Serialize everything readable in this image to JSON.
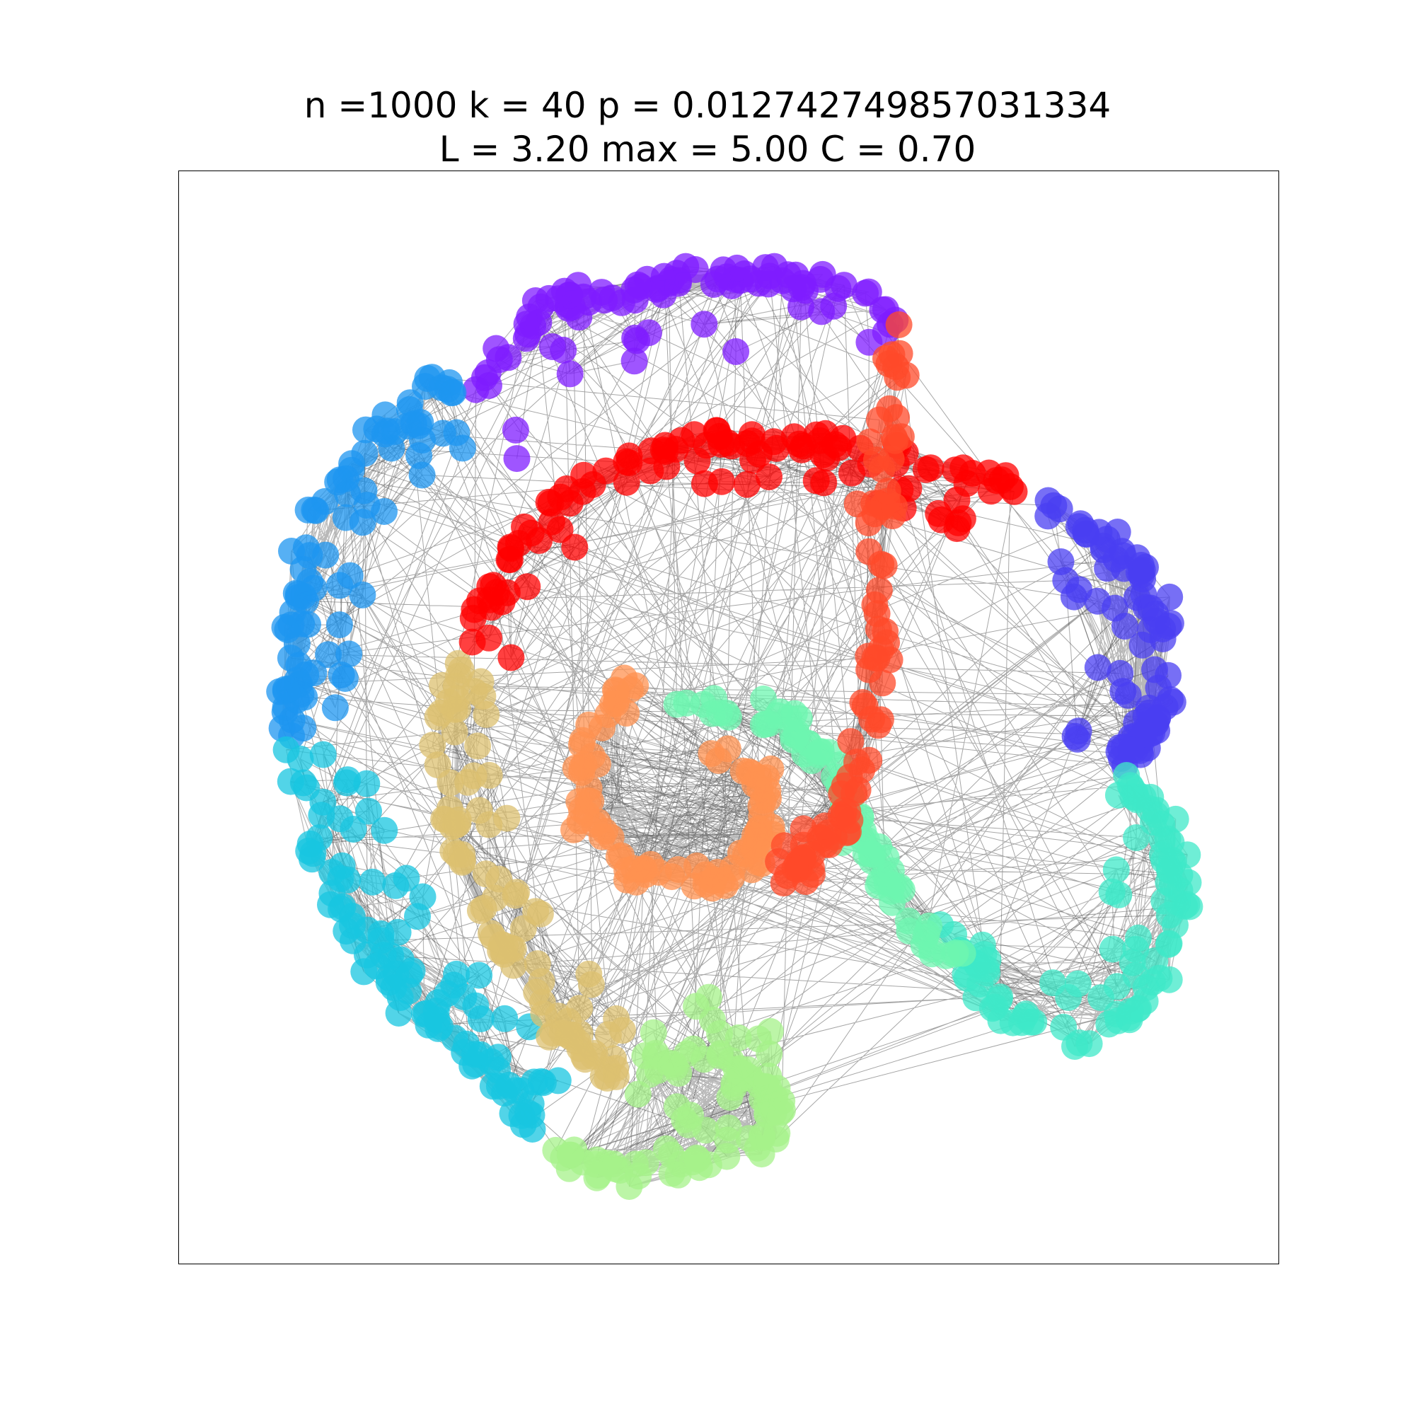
{
  "title": {
    "line1": "n =1000 k = 40 p = 0.012742749857031334",
    "line2": "L = 3.20 max = 5.00 C = 0.70"
  },
  "graph": {
    "type": "network",
    "layout": "force-directed spiral of communities",
    "node_alpha": 0.75,
    "edge_color": "#000000",
    "communities": [
      {
        "name": "purple",
        "color": "#7f1cff"
      },
      {
        "name": "blue",
        "color": "#4a3ff2"
      },
      {
        "name": "sky-blue",
        "color": "#1e96f0"
      },
      {
        "name": "cyan",
        "color": "#18c6e0"
      },
      {
        "name": "turquoise",
        "color": "#3fe8c8"
      },
      {
        "name": "mint",
        "color": "#6ef5b0"
      },
      {
        "name": "light-green",
        "color": "#a6f28a"
      },
      {
        "name": "tan",
        "color": "#dcc070"
      },
      {
        "name": "orange",
        "color": "#ff9150"
      },
      {
        "name": "red-orange",
        "color": "#ff4a2a"
      },
      {
        "name": "red",
        "color": "#ff0000"
      }
    ]
  }
}
